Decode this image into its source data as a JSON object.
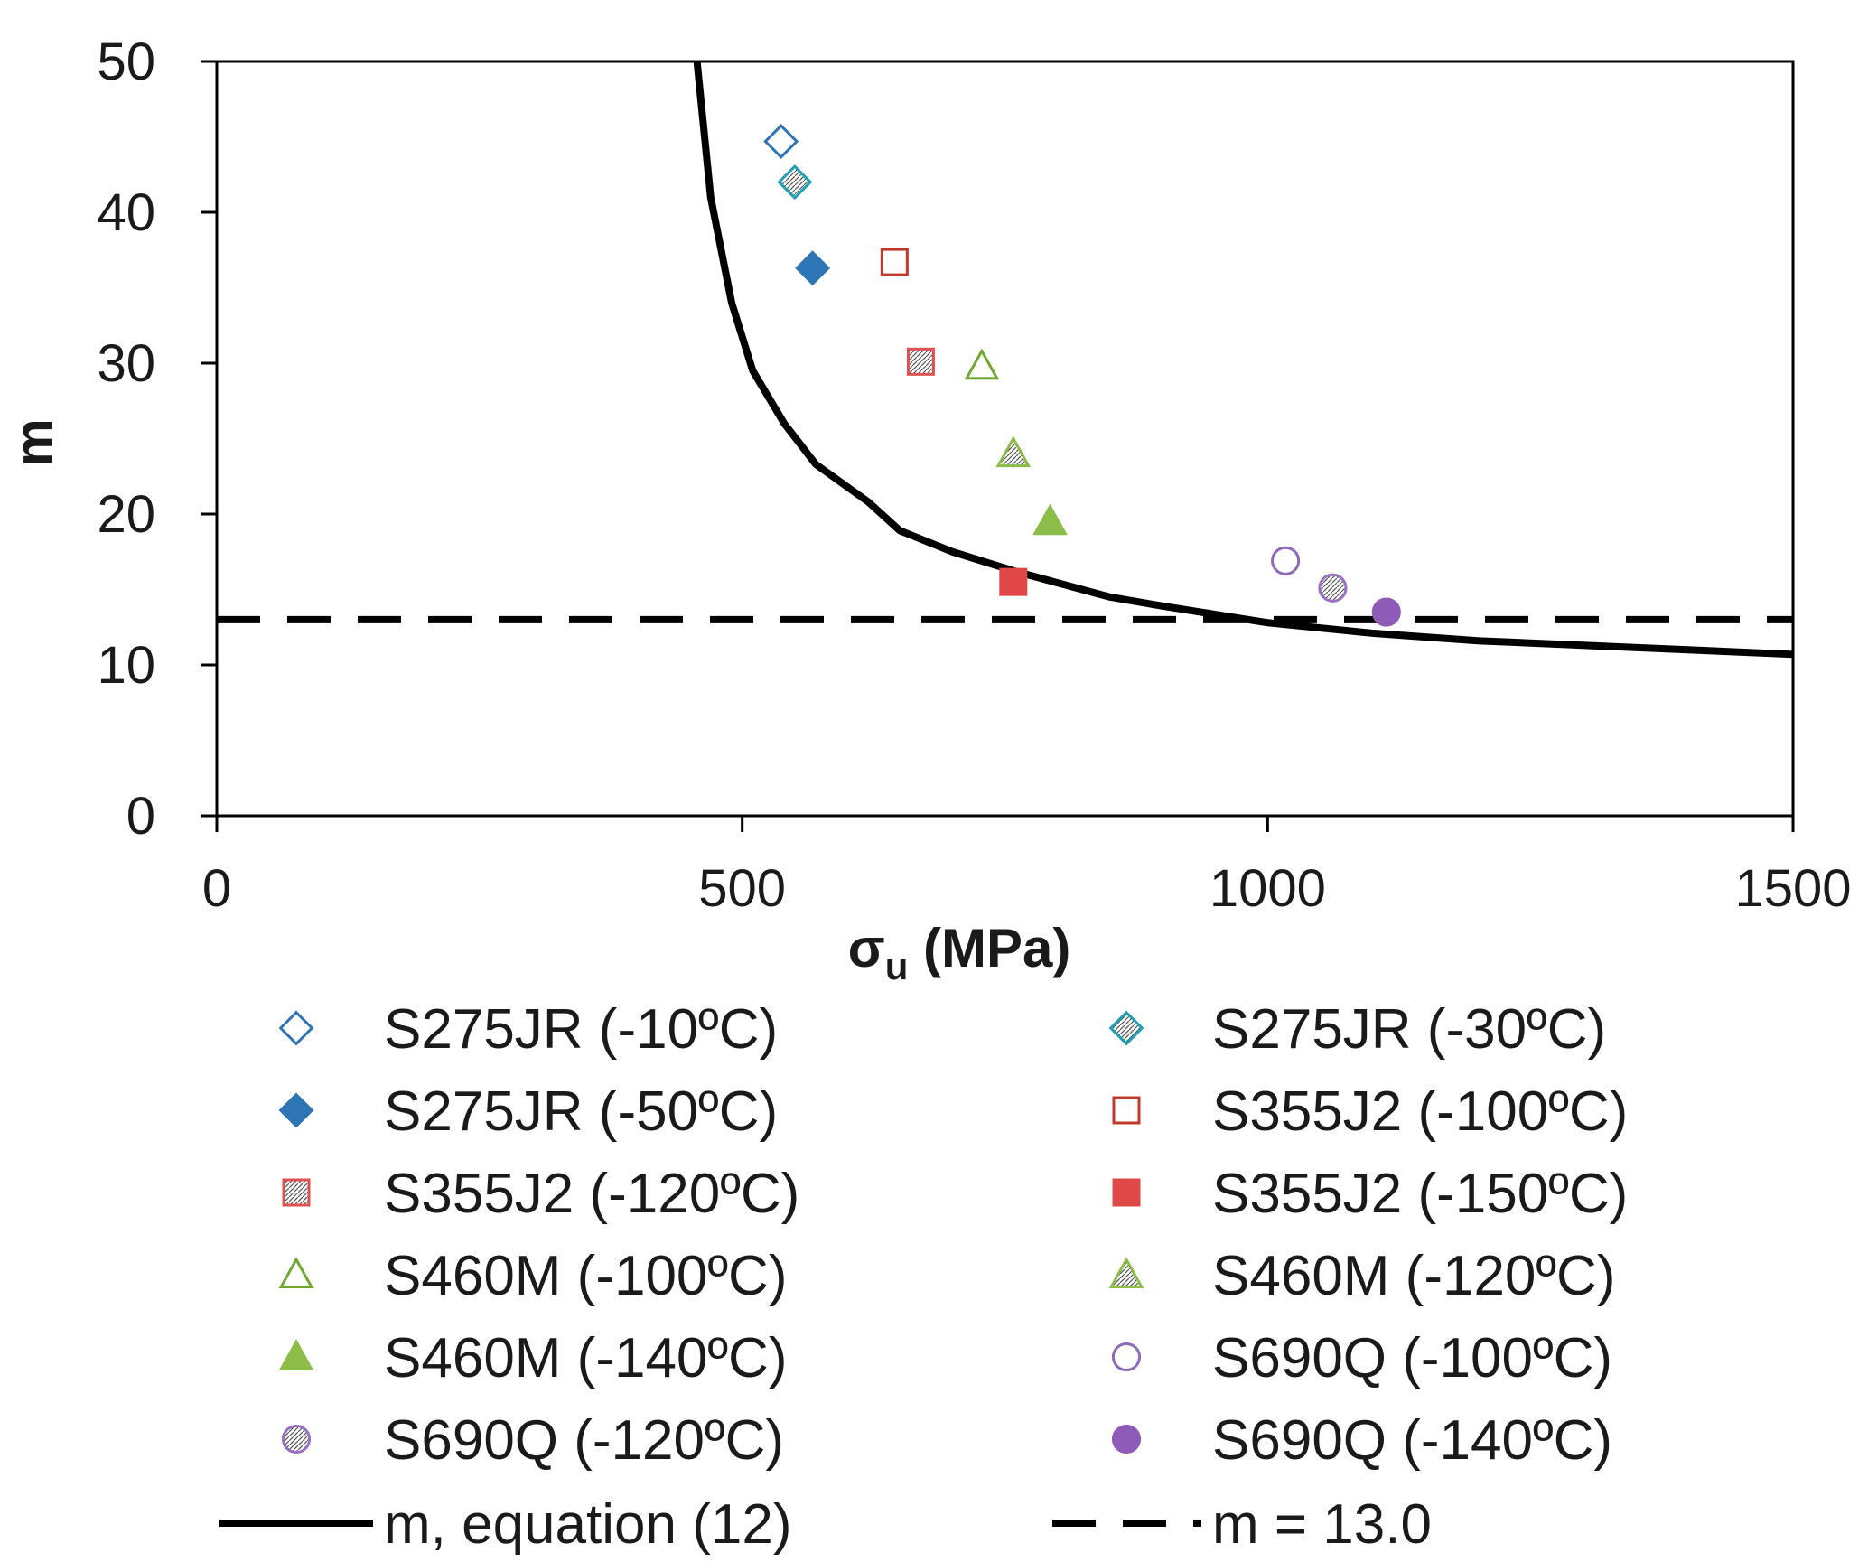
{
  "chart_data": {
    "type": "scatter",
    "title": "",
    "xlabel": "σu (MPa)",
    "xlabel_main": "σ",
    "xlabel_sub": "u",
    "xlabel_rest": " (MPa)",
    "ylabel": "m",
    "xlim": [
      0,
      1500
    ],
    "ylim": [
      0,
      50
    ],
    "xticks": [
      "0",
      "500",
      "1000",
      "1500"
    ],
    "yticks": [
      "0",
      "10",
      "20",
      "30",
      "40",
      "50"
    ],
    "grid": false,
    "legend_position": "below",
    "series": [
      {
        "name": "S275JR (-10ºC)",
        "marker": "diamond-open",
        "color": "#2e75b6",
        "x": [
          537
        ],
        "y": [
          44.7
        ]
      },
      {
        "name": "S275JR (-30ºC)",
        "marker": "diamond-hatched",
        "color": "#1fa0b5",
        "x": [
          550
        ],
        "y": [
          42.0
        ]
      },
      {
        "name": "S275JR (-50ºC)",
        "marker": "diamond-filled",
        "color": "#2e75b6",
        "x": [
          567
        ],
        "y": [
          36.3
        ]
      },
      {
        "name": "S355J2 (-100ºC)",
        "marker": "square-open",
        "color": "#c0392b",
        "x": [
          645
        ],
        "y": [
          36.7
        ]
      },
      {
        "name": "S355J2 (-120ºC)",
        "marker": "square-hatched",
        "color": "#e05050",
        "x": [
          670
        ],
        "y": [
          30.1
        ]
      },
      {
        "name": "S355J2 (-150ºC)",
        "marker": "square-filled",
        "color": "#e04848",
        "x": [
          758
        ],
        "y": [
          15.5
        ]
      },
      {
        "name": "S460M (-100ºC)",
        "marker": "triangle-open",
        "color": "#70a830",
        "x": [
          728
        ],
        "y": [
          29.8
        ]
      },
      {
        "name": "S460M (-120ºC)",
        "marker": "triangle-hatched",
        "color": "#8cbd48",
        "x": [
          758
        ],
        "y": [
          24.0
        ]
      },
      {
        "name": "S460M (-140ºC)",
        "marker": "triangle-filled",
        "color": "#8cbd48",
        "x": [
          793
        ],
        "y": [
          19.5
        ]
      },
      {
        "name": "S690Q (-100ºC)",
        "marker": "circle-open",
        "color": "#8e6bb8",
        "x": [
          1017
        ],
        "y": [
          16.9
        ]
      },
      {
        "name": "S690Q (-120ºC)",
        "marker": "circle-hatched",
        "color": "#9b6fc4",
        "x": [
          1062
        ],
        "y": [
          15.1
        ]
      },
      {
        "name": "S690Q (-140ºC)",
        "marker": "circle-filled",
        "color": "#8e5bb8",
        "x": [
          1113
        ],
        "y": [
          13.5
        ]
      }
    ],
    "lines": [
      {
        "name": "m, equation (12)",
        "style": "solid",
        "color": "#000000",
        "x": [
          457,
          470,
          490,
          510,
          540,
          570,
          620,
          650,
          700,
          760,
          850,
          900,
          1000,
          1100,
          1200,
          1300,
          1400,
          1500
        ],
        "y": [
          50,
          41,
          34,
          29.5,
          26,
          23.3,
          20.8,
          18.9,
          17.5,
          16.2,
          14.5,
          13.9,
          12.8,
          12.1,
          11.6,
          11.3,
          11.0,
          10.7
        ]
      },
      {
        "name": "m = 13.0",
        "style": "dashed",
        "color": "#000000",
        "x": [
          0,
          1500
        ],
        "y": [
          13.0,
          13.0
        ]
      }
    ]
  }
}
